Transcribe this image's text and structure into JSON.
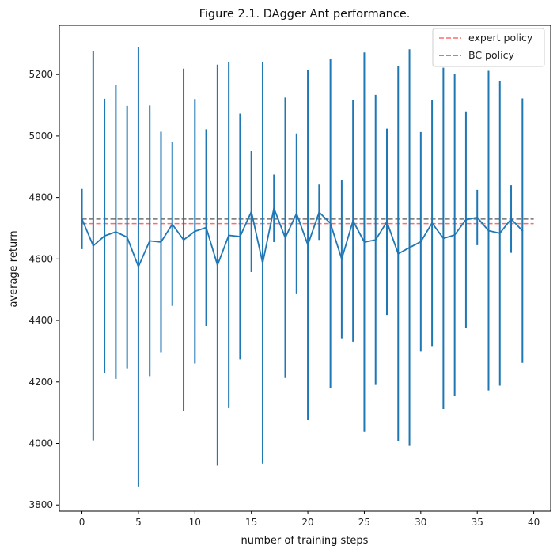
{
  "chart_data": {
    "type": "line",
    "title": "Figure 2.1. DAgger Ant performance.",
    "xlabel": "number of training steps",
    "ylabel": "average return",
    "xlim": [
      -2,
      41.5
    ],
    "ylim": [
      3780,
      5360
    ],
    "xticks": [
      0,
      5,
      10,
      15,
      20,
      25,
      30,
      35,
      40
    ],
    "yticks": [
      3800,
      4000,
      4200,
      4400,
      4600,
      4800,
      5000,
      5200
    ],
    "grid": false,
    "legend_position": "top-right",
    "colors": {
      "series": "#1f77b4",
      "expert": "#ff6b6b",
      "bc": "#707070",
      "axis": "#000000"
    },
    "series": [
      {
        "x": [
          0,
          1,
          2,
          3,
          4,
          5,
          6,
          7,
          8,
          9,
          10,
          11,
          12,
          13,
          14,
          15,
          16,
          17,
          18,
          19,
          20,
          21,
          22,
          23,
          24,
          25,
          26,
          27,
          28,
          29,
          30,
          31,
          32,
          33,
          34,
          35,
          36,
          37,
          38,
          39
        ],
        "y": [
          4730,
          4643,
          4675,
          4688,
          4671,
          4575,
          4659,
          4655,
          4713,
          4662,
          4690,
          4702,
          4580,
          4677,
          4673,
          4754,
          4587,
          4765,
          4669,
          4748,
          4646,
          4752,
          4716,
          4600,
          4724,
          4655,
          4662,
          4721,
          4617,
          4637,
          4656,
          4717,
          4667,
          4678,
          4728,
          4735,
          4692,
          4684,
          4730,
          4692
        ],
        "yerr": [
          98,
          633,
          446,
          478,
          427,
          715,
          440,
          359,
          266,
          557,
          430,
          320,
          652,
          562,
          400,
          197,
          652,
          110,
          456,
          260,
          570,
          90,
          535,
          258,
          393,
          617,
          472,
          303,
          610,
          645,
          357,
          400,
          555,
          525,
          352,
          90,
          520,
          496,
          110,
          430
        ]
      }
    ],
    "reference_lines": [
      {
        "name": "expert policy",
        "y": 4715,
        "style": "dashed"
      },
      {
        "name": "BC policy",
        "y": 4730,
        "style": "dashed"
      }
    ]
  }
}
